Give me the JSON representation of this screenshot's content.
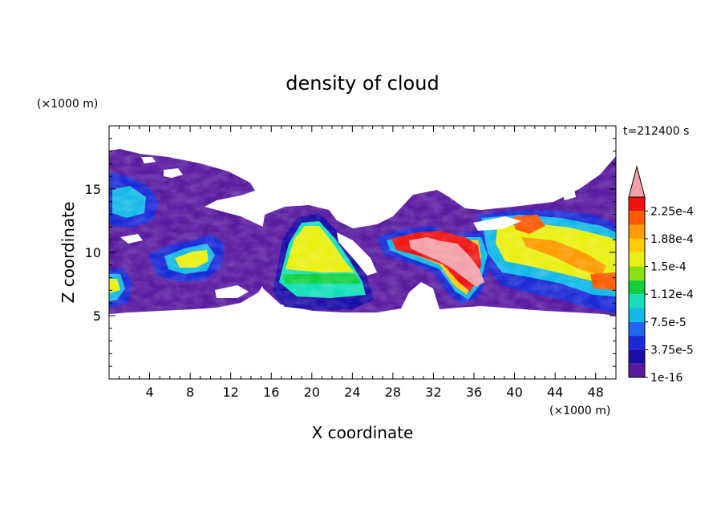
{
  "chart_data": {
    "type": "heatmap",
    "title": "density of cloud",
    "xlabel": "X coordinate",
    "ylabel": "Z coordinate",
    "x_unit": "(×1000 m)",
    "y_unit": "(×1000 m)",
    "time_label": "t=212400 s",
    "xlim": [
      0,
      50
    ],
    "ylim": [
      0,
      20
    ],
    "x_ticks": [
      4,
      8,
      12,
      16,
      20,
      24,
      28,
      32,
      36,
      40,
      44,
      48
    ],
    "y_ticks": [
      5,
      10,
      15
    ],
    "colorbar": {
      "labels": [
        "1e-16",
        "3.75e-5",
        "7.5e-5",
        "1.12e-4",
        "1.5e-4",
        "1.88e-4",
        "2.25e-4"
      ],
      "colors": [
        "#5a1ba0",
        "#1c0ca8",
        "#1a2ad6",
        "#1f66f0",
        "#12b8e8",
        "#13e0b8",
        "#10d040",
        "#8ae00e",
        "#e8f010",
        "#ffcc00",
        "#ff9a00",
        "#ff5a00",
        "#f01010",
        "#f4a0a8"
      ],
      "over_color": "#f4a0a8"
    }
  }
}
